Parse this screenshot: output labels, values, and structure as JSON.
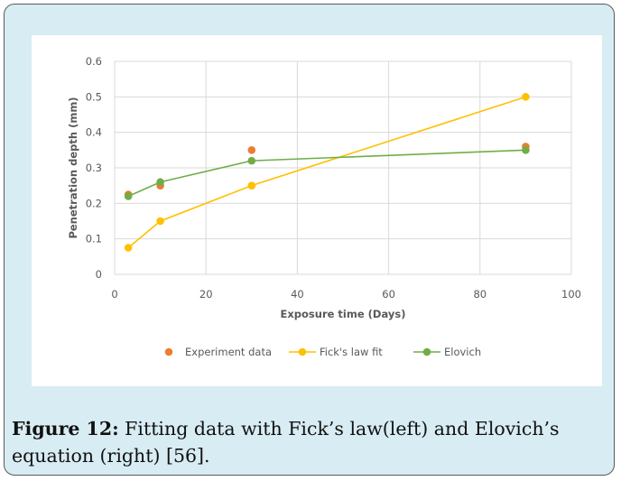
{
  "chart_data": {
    "type": "line",
    "xlabel": "Exposure time (Days)",
    "ylabel": "Penetration depth (mm)",
    "xlim": [
      0,
      100
    ],
    "ylim": [
      0,
      0.6
    ],
    "xticks": [
      "0",
      "20",
      "40",
      "60",
      "80",
      "100"
    ],
    "yticks": [
      "0",
      "0.1",
      "0.2",
      "0.3",
      "0.4",
      "0.5",
      "0.6"
    ],
    "grid": true,
    "legend_position": "bottom",
    "series": [
      {
        "name": "Experiment data",
        "style": "markers",
        "color": "#ed7d31",
        "x": [
          3,
          10,
          30,
          90
        ],
        "y": [
          0.225,
          0.25,
          0.35,
          0.36
        ]
      },
      {
        "name": "Fick's law fit",
        "style": "line-markers",
        "color": "#ffc000",
        "x": [
          3,
          10,
          30,
          90
        ],
        "y": [
          0.075,
          0.15,
          0.25,
          0.5
        ]
      },
      {
        "name": "Elovich",
        "style": "line-markers",
        "color": "#70ad47",
        "x": [
          3,
          10,
          30,
          90
        ],
        "y": [
          0.22,
          0.26,
          0.32,
          0.35
        ]
      }
    ]
  },
  "caption": {
    "label": "Figure 12:",
    "text": " Fitting data with Fick’s law(left) and Elovich’s equation (right) [56]."
  }
}
